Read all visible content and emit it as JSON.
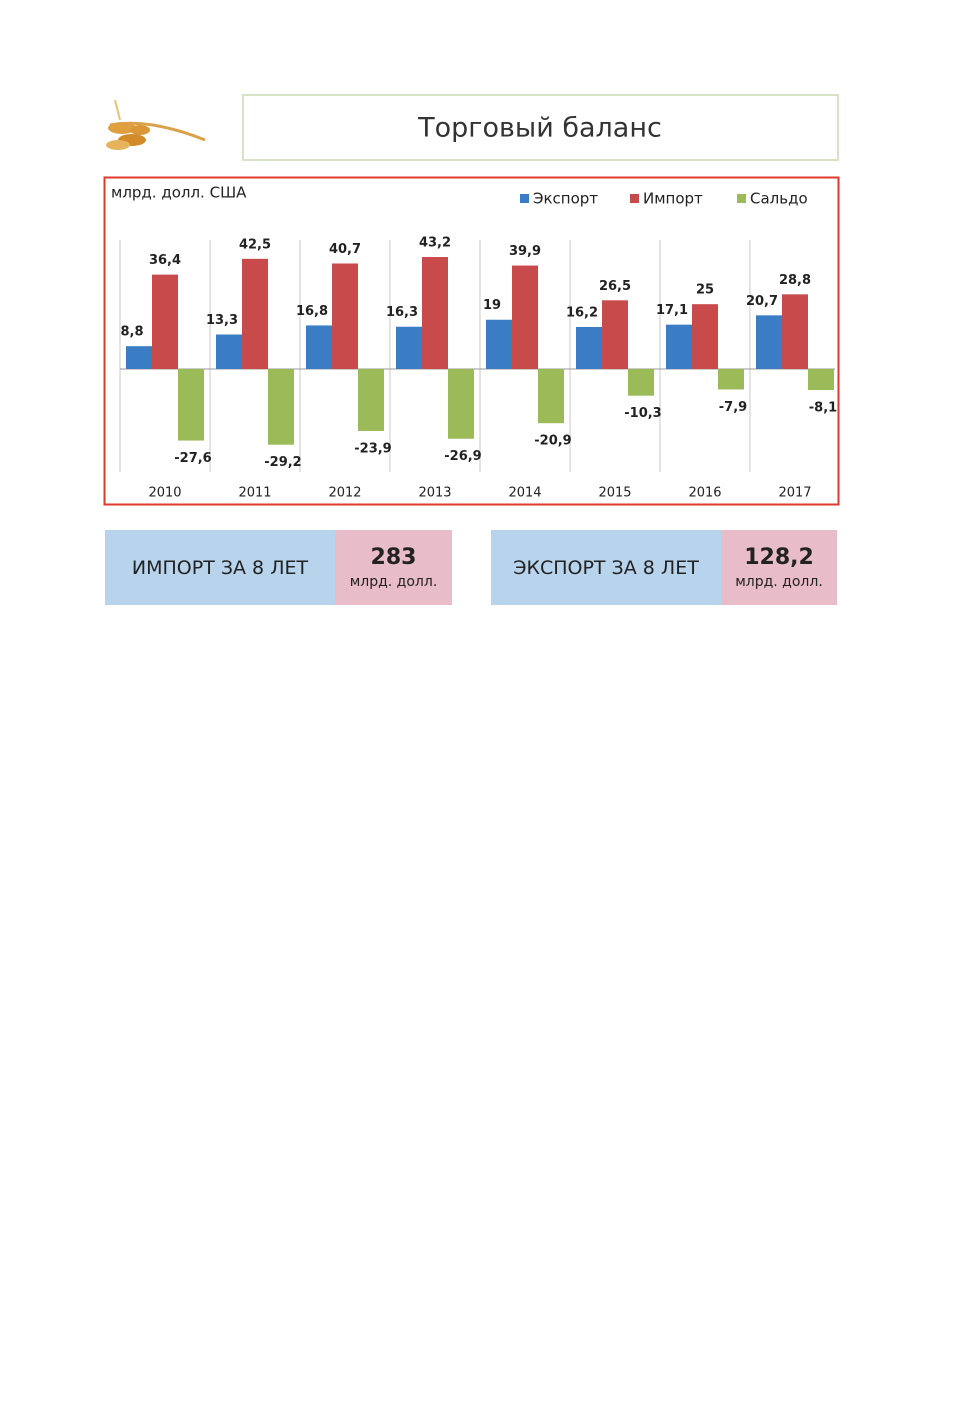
{
  "header": {
    "title": "Торговый баланс"
  },
  "chart_data": {
    "type": "bar",
    "unit_label": "млрд. долл. США",
    "legend": "top-right",
    "categories": [
      "2010",
      "2011",
      "2012",
      "2013",
      "2014",
      "2015",
      "2016",
      "2017"
    ],
    "series": [
      {
        "name": "Экспорт",
        "color": "#3a7dc4",
        "values": [
          8.8,
          13.3,
          16.8,
          16.3,
          19,
          16.2,
          17.1,
          20.7
        ],
        "value_labels": [
          "8,8",
          "13,3",
          "16,8",
          "16,3",
          "19",
          "16,2",
          "17,1",
          "20,7"
        ]
      },
      {
        "name": "Импорт",
        "color": "#c94a4a",
        "values": [
          36.4,
          42.5,
          40.7,
          43.2,
          39.9,
          26.5,
          25,
          28.8
        ],
        "value_labels": [
          "36,4",
          "42,5",
          "40,7",
          "43,2",
          "39,9",
          "26,5",
          "25",
          "28,8"
        ]
      },
      {
        "name": "Сальдо",
        "color": "#9bbb59",
        "values": [
          -27.6,
          -29.2,
          -23.9,
          -26.9,
          -20.9,
          -10.3,
          -7.9,
          -8.1
        ],
        "value_labels": [
          "-27,6",
          "-29,2",
          "-23,9",
          "-26,9",
          "-20,9",
          "-10,3",
          "-7,9",
          "-8,1"
        ]
      }
    ]
  },
  "summary": [
    {
      "label": "ИМПОРТ ЗА 8 ЛЕТ",
      "value": "283",
      "unit": "млрд. долл."
    },
    {
      "label": "ЭКСПОРТ ЗА 8 ЛЕТ",
      "value": "128,2",
      "unit": "млрд. долл."
    }
  ]
}
